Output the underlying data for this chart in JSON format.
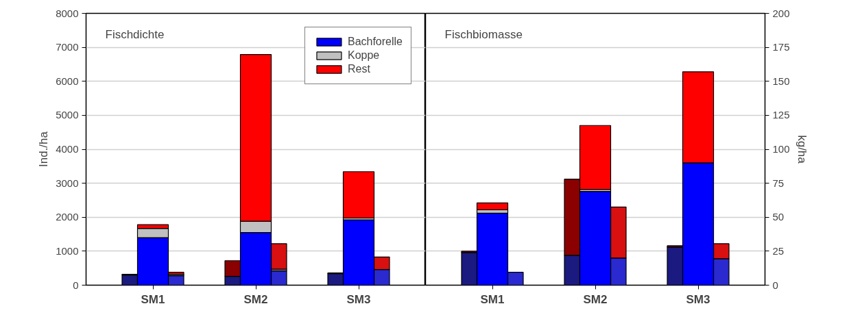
{
  "chart_data": [
    {
      "type": "bar",
      "title": "Fischdichte",
      "ylabel": "Ind./ha",
      "stacked": true,
      "legend": "top right",
      "grid": "y",
      "categories": [
        null,
        "SM1",
        null,
        null,
        "SM2",
        null,
        null,
        "SM3",
        null
      ],
      "ylim": [
        0,
        8000
      ],
      "yticks": [
        0,
        1000,
        2000,
        3000,
        4000,
        5000,
        6000,
        7000,
        8000
      ],
      "series": [
        {
          "name": "Bachforelle",
          "colors": [
            "#1a1a80",
            "#0000ff",
            "#2a2ad0",
            "#1a1a80",
            "#0000ff",
            "#2a2ad0",
            "#1a1a80",
            "#0000ff",
            "#2a2ad0"
          ],
          "values": [
            300,
            1400,
            280,
            260,
            1550,
            420,
            340,
            1920,
            460
          ]
        },
        {
          "name": "Koppe",
          "colors": [
            "#606060",
            "#c0c0c0",
            "#909090",
            "#606060",
            "#c0c0c0",
            "#909090",
            "#606060",
            "#c0c0c0",
            "#909090"
          ],
          "values": [
            null,
            270,
            40,
            null,
            330,
            50,
            null,
            60,
            null
          ]
        },
        {
          "name": "Rest",
          "colors": [
            "#8b0000",
            "#ff0000",
            "#d81010",
            "#8b0000",
            "#ff0000",
            "#d81010",
            "#8b0000",
            "#ff0000",
            "#d81010"
          ],
          "values": [
            20,
            110,
            60,
            460,
            4910,
            750,
            20,
            1360,
            370
          ]
        }
      ]
    },
    {
      "type": "bar",
      "title": "Fischbiomasse",
      "y2label": "kg/ha",
      "stacked": true,
      "grid": "y",
      "categories": [
        null,
        "SM1",
        null,
        null,
        "SM2",
        null,
        null,
        "SM3",
        null
      ],
      "y2lim": [
        0,
        200
      ],
      "y2ticks": [
        0,
        25,
        50,
        75,
        100,
        125,
        150,
        175,
        200
      ],
      "series": [
        {
          "colors": [
            "#1a1a80",
            "#0000ff",
            "#2a2ad0",
            "#1a1a80",
            "#0000ff",
            "#2a2ad0",
            "#1a1a80",
            "#0000ff",
            "#2a2ad0"
          ],
          "values": [
            24,
            53,
            9.5,
            22,
            69,
            20,
            28,
            90,
            19.5
          ],
          "axis": "y2"
        },
        {
          "colors": [
            "#606060",
            "#c0c0c0",
            "#909090",
            "#606060",
            "#c0c0c0",
            "#909090",
            "#606060",
            "#c0c0c0",
            "#909090"
          ],
          "values": [
            null,
            2.5,
            null,
            null,
            1.5,
            null,
            null,
            null,
            null
          ],
          "axis": "y2"
        },
        {
          "colors": [
            "#8b0000",
            "#ff0000",
            "#d81010",
            "#8b0000",
            "#ff0000",
            "#d81010",
            "#8b0000",
            "#ff0000",
            "#d81010"
          ],
          "values": [
            1,
            5,
            null,
            56,
            47,
            37.5,
            1,
            67,
            11
          ],
          "axis": "y2"
        }
      ]
    }
  ]
}
